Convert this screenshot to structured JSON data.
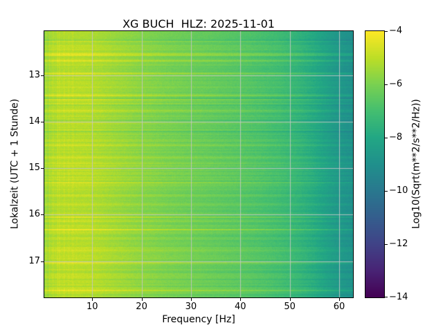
{
  "figure": {
    "background": "#ffffff"
  },
  "chart_data": {
    "type": "heatmap",
    "title": "XG BUCH  HLZ: 2025-11-01",
    "xlabel": "Frequency [Hz]",
    "ylabel": "Lokalzeit (UTC + 1 Stunde)",
    "x_range": [
      0.3,
      62.8
    ],
    "x_ticks": [
      10,
      20,
      30,
      40,
      50,
      60
    ],
    "x_tick_labels": [
      "10",
      "20",
      "30",
      "40",
      "50",
      "60"
    ],
    "y_range": [
      12.05,
      17.78
    ],
    "y_ticks": [
      13,
      14,
      15,
      16,
      17
    ],
    "y_tick_labels": [
      "13",
      "14",
      "15",
      "16",
      "17"
    ],
    "grid": true,
    "grid_color": "#c8c8c8",
    "colormap": "viridis",
    "colorbar": {
      "label": "Log10(Sqrt(m**2/s**2/Hz))",
      "range": [
        -14,
        -4
      ],
      "ticks": [
        -4,
        -6,
        -8,
        -10,
        -12,
        -14
      ],
      "tick_labels": [
        "−4",
        "−6",
        "−8",
        "−10",
        "−12",
        "−14"
      ]
    },
    "value_profile_by_frequency": [
      [
        0.3,
        -5.6
      ],
      [
        1,
        -5.2
      ],
      [
        3,
        -5.05
      ],
      [
        6,
        -5.0
      ],
      [
        10,
        -5.1
      ],
      [
        14,
        -5.35
      ],
      [
        20,
        -5.7
      ],
      [
        25,
        -5.95
      ],
      [
        30,
        -6.15
      ],
      [
        35,
        -6.35
      ],
      [
        40,
        -6.55
      ],
      [
        44,
        -6.75
      ],
      [
        48,
        -7.0
      ],
      [
        52,
        -7.4
      ],
      [
        55,
        -7.8
      ],
      [
        58,
        -8.3
      ],
      [
        60,
        -8.6
      ],
      [
        62.8,
        -8.9
      ]
    ],
    "stripe_amplitude": 0.45,
    "noise_amplitude": 0.35
  }
}
